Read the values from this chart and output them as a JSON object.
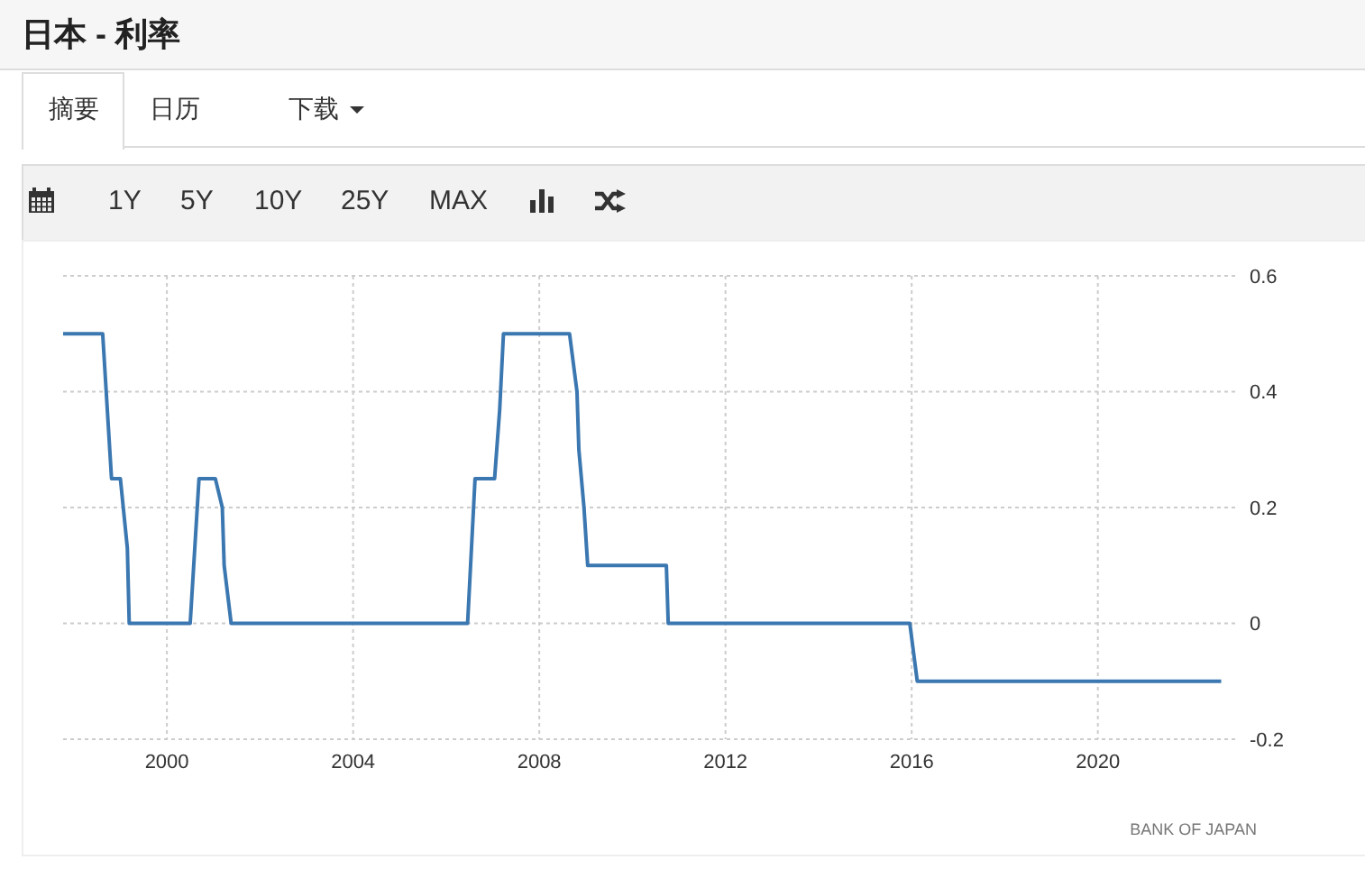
{
  "chart_data": {
    "type": "line",
    "title": "日本 - 利率",
    "annotations": [
      "摘要",
      "日历",
      "下载",
      "1Y",
      "5Y",
      "10Y",
      "25Y",
      "MAX",
      "BANK OF JAPAN"
    ],
    "series": [
      {
        "color": "#3b77b0",
        "x": [
          1997.77,
          1998.62,
          1998.81,
          1999.0,
          1999.15,
          1999.19,
          2000.5,
          2000.69,
          2001.04,
          2001.19,
          2001.23,
          2001.38,
          2006.46,
          2006.62,
          2007.04,
          2007.15,
          2007.23,
          2008.65,
          2008.81,
          2008.85,
          2008.96,
          2009.04,
          2010.73,
          2010.77,
          2015.96,
          2016.12,
          2022.65
        ],
        "values": [
          0.5,
          0.5,
          0.25,
          0.25,
          0.13,
          0,
          0,
          0.25,
          0.25,
          0.2,
          0.1,
          0,
          0,
          0.25,
          0.25,
          0.37,
          0.5,
          0.5,
          0.4,
          0.3,
          0.2,
          0.1,
          0.1,
          0,
          0,
          -0.1,
          -0.1
        ]
      }
    ],
    "xlim": [
      1997.77,
      2022.95
    ],
    "xticks": [
      2000,
      2004,
      2008,
      2012,
      2016,
      2020
    ],
    "ylim": [
      -0.2,
      0.6
    ],
    "yticks": [
      -0.2,
      0,
      0.2,
      0.4,
      0.6
    ],
    "grid": true,
    "marker": "none",
    "line_style": "solid"
  }
}
